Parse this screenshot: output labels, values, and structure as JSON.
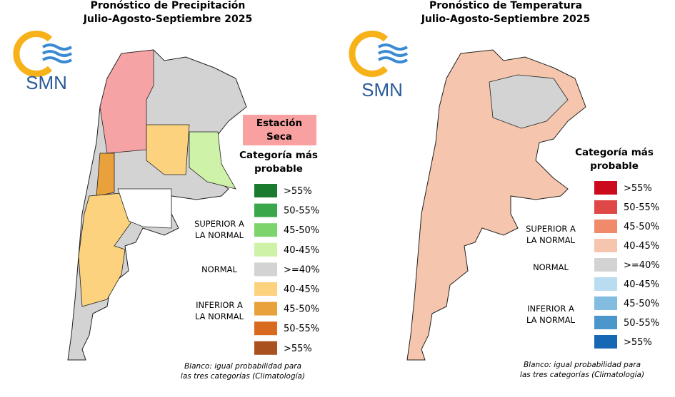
{
  "panels": [
    {
      "title": "Pronóstico de Precipitación",
      "subtitle": "Julio-Agosto-Septiembre 2025",
      "logo": "SMN",
      "badge": [
        "Estación",
        "Seca"
      ],
      "legend_title": [
        "Categoría más",
        "probable"
      ],
      "groups": [
        [
          "SUPERIOR A",
          "LA NORMAL"
        ],
        [
          "NORMAL"
        ],
        [
          "INFERIOR A",
          "LA NORMAL"
        ]
      ],
      "legend": [
        {
          "label": ">55%",
          "color": "#1a7a2e"
        },
        {
          "label": "50-55%",
          "color": "#3aa84a"
        },
        {
          "label": "45-50%",
          "color": "#7dd46a"
        },
        {
          "label": "40-45%",
          "color": "#cdf2a8"
        },
        {
          "label": ">=40%",
          "color": "#d3d3d3"
        },
        {
          "label": "40-45%",
          "color": "#fcd27e"
        },
        {
          "label": "45-50%",
          "color": "#e9a13c"
        },
        {
          "label": "50-55%",
          "color": "#d9691d"
        },
        {
          "label": ">55%",
          "color": "#a9521f"
        }
      ],
      "footnote": [
        "Blanco: igual probabilidad para",
        "las tres categorías (Climatología)"
      ]
    },
    {
      "title": "Pronóstico de Temperatura",
      "subtitle": "Julio-Agosto-Septiembre 2025",
      "logo": "SMN",
      "legend_title": [
        "Categoría más",
        "probable"
      ],
      "groups": [
        [
          "SUPERIOR A",
          "LA NORMAL"
        ],
        [
          "NORMAL"
        ],
        [
          "INFERIOR A",
          "LA NORMAL"
        ]
      ],
      "legend": [
        {
          "label": ">55%",
          "color": "#cc0a1e"
        },
        {
          "label": "50-55%",
          "color": "#e04848"
        },
        {
          "label": "45-50%",
          "color": "#f08a6a"
        },
        {
          "label": "40-45%",
          "color": "#f5c6ad"
        },
        {
          "label": ">=40%",
          "color": "#d3d3d3"
        },
        {
          "label": "40-45%",
          "color": "#b9dcf0"
        },
        {
          "label": "45-50%",
          "color": "#82bde0"
        },
        {
          "label": "50-55%",
          "color": "#4b97cc"
        },
        {
          "label": ">55%",
          "color": "#1668b4"
        }
      ],
      "footnote": [
        "Blanco: igual probabilidad para",
        "las tres categorías (Climatología)"
      ]
    }
  ]
}
